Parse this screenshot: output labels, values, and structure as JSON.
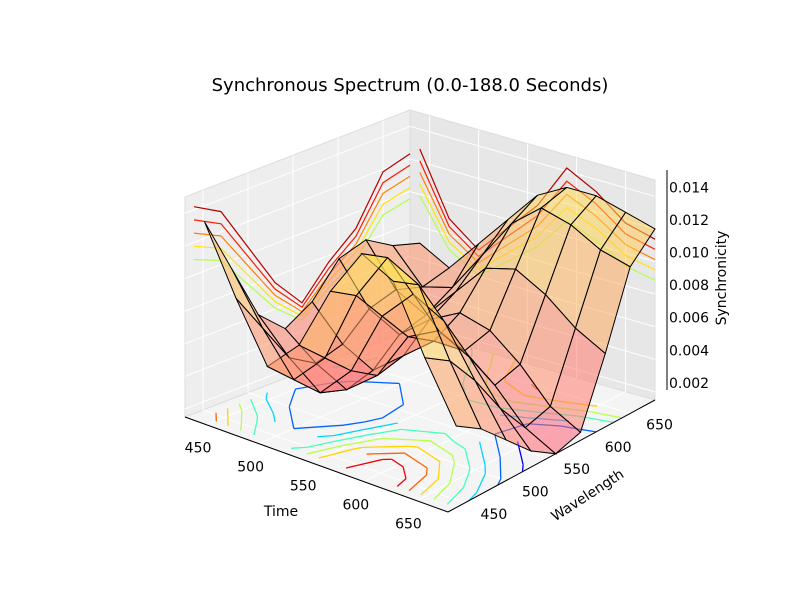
{
  "chart_data": {
    "type": "surface3d",
    "title": "Synchronous Spectrum (0.0-188.0 Seconds)",
    "xlabel": "Time",
    "ylabel": "Wavelength",
    "zlabel": "Synchronicity",
    "xlim": [
      430,
      680
    ],
    "ylim": [
      430,
      680
    ],
    "zlim": [
      0.0015,
      0.015
    ],
    "x_ticks": [
      "450",
      "500",
      "550",
      "600",
      "650"
    ],
    "y_ticks": [
      "450",
      "500",
      "550",
      "600",
      "650"
    ],
    "z_ticks": [
      "0.002",
      "0.004",
      "0.006",
      "0.008",
      "0.010",
      "0.012",
      "0.014"
    ],
    "grid": true,
    "colormap": "jet",
    "surface_color": "autumn (red to yellow)",
    "wireframe_color": "#000000",
    "projected_contours": [
      "floor (z)",
      "back wall (x)",
      "right wall (y)"
    ],
    "surface": {
      "x": [
        440,
        470,
        500,
        530,
        560,
        590,
        620,
        650,
        680
      ],
      "y": [
        440,
        470,
        500,
        530,
        560,
        590,
        620,
        650,
        680
      ],
      "z": [
        [
          0.0135,
          0.01,
          0.0065,
          0.005,
          0.006,
          0.008,
          0.0085,
          0.0075,
          0.007
        ],
        [
          0.0095,
          0.007,
          0.0045,
          0.0035,
          0.004,
          0.0055,
          0.006,
          0.0055,
          0.006
        ],
        [
          0.006,
          0.0045,
          0.003,
          0.0025,
          0.003,
          0.0045,
          0.005,
          0.006,
          0.008
        ],
        [
          0.008,
          0.0065,
          0.005,
          0.004,
          0.0045,
          0.006,
          0.007,
          0.0085,
          0.01
        ],
        [
          0.012,
          0.011,
          0.009,
          0.007,
          0.006,
          0.007,
          0.009,
          0.011,
          0.012
        ],
        [
          0.015,
          0.014,
          0.011,
          0.008,
          0.006,
          0.0065,
          0.0095,
          0.0125,
          0.013
        ],
        [
          0.014,
          0.013,
          0.01,
          0.007,
          0.0045,
          0.005,
          0.0085,
          0.012,
          0.013
        ],
        [
          0.01,
          0.009,
          0.007,
          0.0045,
          0.0025,
          0.003,
          0.007,
          0.011,
          0.0125
        ],
        [
          0.0065,
          0.0055,
          0.004,
          0.0025,
          0.0015,
          0.002,
          0.006,
          0.0105,
          0.012
        ]
      ]
    }
  }
}
